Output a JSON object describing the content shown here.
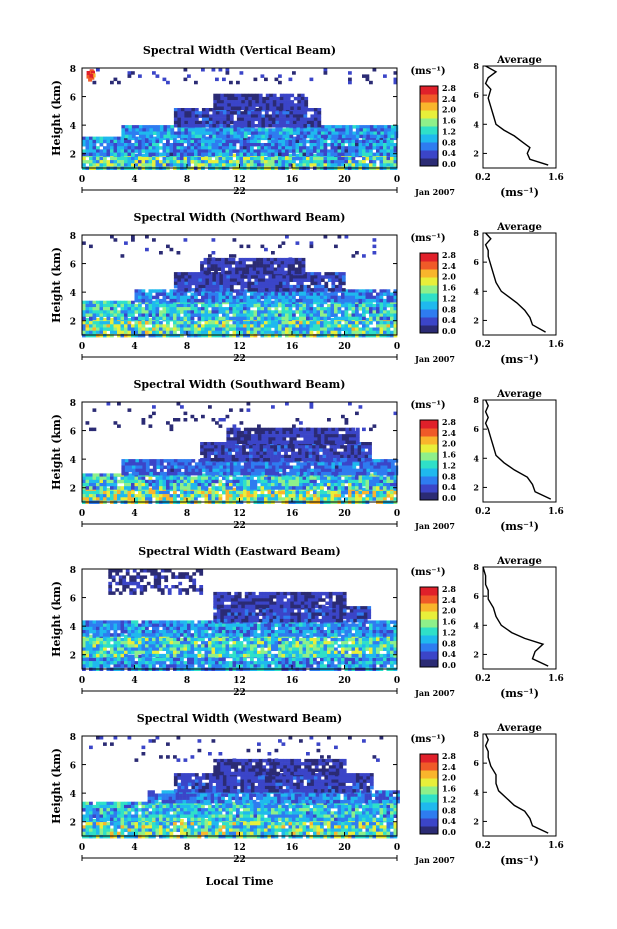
{
  "figure": {
    "date_label": "Jan 2007",
    "x_common_label": "Local Time",
    "colorbar_unit": "(ms⁻¹)",
    "colorbar_ticks": [
      "0.0",
      "0.4",
      "0.8",
      "1.2",
      "1.6",
      "2.0",
      "2.4",
      "2.8"
    ],
    "colorbar_colors": [
      "#2b2b74",
      "#3b45c8",
      "#2e7cf0",
      "#1fb9ee",
      "#2fe0c8",
      "#8ef08a",
      "#e8ef3a",
      "#f9b52c",
      "#f05a28",
      "#e0202a"
    ],
    "xtick_labels": [
      "0",
      "4",
      "8",
      "12",
      "16",
      "20",
      "0"
    ],
    "day_label": "22",
    "heatmap_ylabel": "Height (km)",
    "heatmap_ytick_labels": [
      "2",
      "4",
      "6",
      "8"
    ],
    "profile_title": "Average",
    "profile_xtick_labels": [
      "0.2",
      "1.6"
    ],
    "profile_ytick_labels": [
      "2",
      "4",
      "6",
      "8"
    ],
    "profile_xlabel": "(ms⁻¹)"
  },
  "chart_data": [
    {
      "type": "heatmap",
      "title": "Spectral Width (Vertical Beam)",
      "xlabel": "Local Time (22 Jan 2007)",
      "ylabel": "Height (km)",
      "x_range_hours": [
        0,
        24
      ],
      "y_range_km": [
        1,
        8
      ],
      "color_range": [
        0.0,
        2.8
      ],
      "color_unit": "ms-1",
      "noise_edge_ragged": 0.6,
      "layers": [
        {
          "h0": 1.0,
          "h1": 2.0,
          "t0": 0,
          "t1": 24,
          "value": 1.0,
          "spread": 0.9
        },
        {
          "h0": 2.0,
          "h1": 3.2,
          "t0": 0,
          "t1": 24,
          "value": 0.6,
          "spread": 0.6
        },
        {
          "h0": 3.2,
          "h1": 4.0,
          "t0": 3,
          "t1": 24,
          "value": 0.7,
          "spread": 0.5
        },
        {
          "h0": 4.0,
          "h1": 5.2,
          "t0": 7,
          "t1": 18,
          "value": 0.3,
          "spread": 0.3
        },
        {
          "h0": 5.2,
          "h1": 6.2,
          "t0": 10,
          "t1": 17,
          "value": 0.25,
          "spread": 0.2
        },
        {
          "h0": 7.0,
          "h1": 8.0,
          "t0": 0,
          "t1": 24,
          "value": 0.2,
          "spread": 0.2,
          "sparse": 0.88
        }
      ],
      "hotspot": {
        "t": 0.3,
        "h": 7.5,
        "value": 2.6
      },
      "profile": {
        "x_range": [
          0.2,
          1.6
        ],
        "y_range_km": [
          1,
          8
        ],
        "points": [
          [
            1.45,
            1.2
          ],
          [
            1.1,
            1.6
          ],
          [
            1.05,
            2.0
          ],
          [
            1.1,
            2.4
          ],
          [
            0.95,
            2.8
          ],
          [
            0.8,
            3.2
          ],
          [
            0.6,
            3.6
          ],
          [
            0.45,
            4.0
          ],
          [
            0.4,
            4.6
          ],
          [
            0.35,
            5.2
          ],
          [
            0.3,
            5.8
          ],
          [
            0.35,
            6.4
          ],
          [
            0.25,
            6.8
          ],
          [
            0.3,
            7.2
          ],
          [
            0.45,
            7.6
          ],
          [
            0.25,
            8.0
          ]
        ]
      }
    },
    {
      "type": "heatmap",
      "title": "Spectral Width (Northward Beam)",
      "xlabel": "Local Time (22 Jan 2007)",
      "ylabel": "Height (km)",
      "x_range_hours": [
        0,
        24
      ],
      "y_range_km": [
        1,
        8
      ],
      "color_range": [
        0.0,
        2.8
      ],
      "color_unit": "ms-1",
      "noise_edge_ragged": 0.7,
      "layers": [
        {
          "h0": 1.0,
          "h1": 2.2,
          "t0": 0,
          "t1": 24,
          "value": 1.1,
          "spread": 0.9
        },
        {
          "h0": 2.2,
          "h1": 3.4,
          "t0": 0,
          "t1": 24,
          "value": 0.9,
          "spread": 0.7
        },
        {
          "h0": 3.4,
          "h1": 4.2,
          "t0": 4,
          "t1": 24,
          "value": 0.6,
          "spread": 0.5
        },
        {
          "h0": 4.2,
          "h1": 5.4,
          "t0": 7,
          "t1": 20,
          "value": 0.3,
          "spread": 0.3
        },
        {
          "h0": 5.4,
          "h1": 6.4,
          "t0": 9,
          "t1": 17,
          "value": 0.25,
          "spread": 0.2
        },
        {
          "h0": 6.4,
          "h1": 8.0,
          "t0": 0,
          "t1": 24,
          "value": 0.2,
          "spread": 0.2,
          "sparse": 0.9
        }
      ],
      "hotspot": null,
      "profile": {
        "x_range": [
          0.2,
          1.6
        ],
        "y_range_km": [
          1,
          8
        ],
        "points": [
          [
            1.4,
            1.2
          ],
          [
            1.15,
            1.7
          ],
          [
            1.1,
            2.2
          ],
          [
            1.0,
            2.7
          ],
          [
            0.85,
            3.2
          ],
          [
            0.7,
            3.6
          ],
          [
            0.55,
            4.0
          ],
          [
            0.45,
            4.6
          ],
          [
            0.4,
            5.2
          ],
          [
            0.35,
            5.8
          ],
          [
            0.3,
            6.4
          ],
          [
            0.3,
            6.8
          ],
          [
            0.25,
            7.2
          ],
          [
            0.35,
            7.6
          ],
          [
            0.25,
            8.0
          ]
        ]
      }
    },
    {
      "type": "heatmap",
      "title": "Spectral Width (Southward Beam)",
      "xlabel": "Local Time (22 Jan 2007)",
      "ylabel": "Height (km)",
      "x_range_hours": [
        0,
        24
      ],
      "y_range_km": [
        1,
        8
      ],
      "color_range": [
        0.0,
        2.8
      ],
      "color_unit": "ms-1",
      "noise_edge_ragged": 0.7,
      "layers": [
        {
          "h0": 1.0,
          "h1": 2.0,
          "t0": 0,
          "t1": 24,
          "value": 1.2,
          "spread": 1.0
        },
        {
          "h0": 2.0,
          "h1": 3.0,
          "t0": 0,
          "t1": 24,
          "value": 0.9,
          "spread": 0.8
        },
        {
          "h0": 3.0,
          "h1": 4.0,
          "t0": 3,
          "t1": 24,
          "value": 0.5,
          "spread": 0.4
        },
        {
          "h0": 4.0,
          "h1": 5.2,
          "t0": 9,
          "t1": 22,
          "value": 0.3,
          "spread": 0.3
        },
        {
          "h0": 5.2,
          "h1": 6.2,
          "t0": 11,
          "t1": 21,
          "value": 0.25,
          "spread": 0.2
        },
        {
          "h0": 6.2,
          "h1": 8.0,
          "t0": 0,
          "t1": 24,
          "value": 0.2,
          "spread": 0.2,
          "sparse": 0.9
        }
      ],
      "hotspot": null,
      "profile": {
        "x_range": [
          0.2,
          1.6
        ],
        "y_range_km": [
          1,
          8
        ],
        "points": [
          [
            1.5,
            1.2
          ],
          [
            1.2,
            1.7
          ],
          [
            1.15,
            2.2
          ],
          [
            1.05,
            2.7
          ],
          [
            0.8,
            3.2
          ],
          [
            0.6,
            3.7
          ],
          [
            0.45,
            4.2
          ],
          [
            0.4,
            4.8
          ],
          [
            0.35,
            5.4
          ],
          [
            0.3,
            6.0
          ],
          [
            0.25,
            6.4
          ],
          [
            0.3,
            6.8
          ],
          [
            0.25,
            7.2
          ],
          [
            0.3,
            7.6
          ],
          [
            0.25,
            8.0
          ]
        ]
      }
    },
    {
      "type": "heatmap",
      "title": "Spectral Width (Eastward Beam)",
      "xlabel": "Local Time (22 Jan 2007)",
      "ylabel": "Height (km)",
      "x_range_hours": [
        0,
        24
      ],
      "y_range_km": [
        1,
        8
      ],
      "color_range": [
        0.0,
        2.8
      ],
      "color_unit": "ms-1",
      "noise_edge_ragged": 0.6,
      "layers": [
        {
          "h0": 1.0,
          "h1": 2.0,
          "t0": 0,
          "t1": 24,
          "value": 0.7,
          "spread": 0.6
        },
        {
          "h0": 2.0,
          "h1": 3.4,
          "t0": 0,
          "t1": 24,
          "value": 1.0,
          "spread": 0.8
        },
        {
          "h0": 3.4,
          "h1": 4.4,
          "t0": 0,
          "t1": 24,
          "value": 0.7,
          "spread": 0.5
        },
        {
          "h0": 4.4,
          "h1": 5.4,
          "t0": 10,
          "t1": 22,
          "value": 0.3,
          "spread": 0.3
        },
        {
          "h0": 5.4,
          "h1": 6.4,
          "t0": 10,
          "t1": 20,
          "value": 0.25,
          "spread": 0.2
        },
        {
          "h0": 6.4,
          "h1": 8.0,
          "t0": 2,
          "t1": 9,
          "value": 0.2,
          "spread": 0.15,
          "sparse": 0.45
        }
      ],
      "hotspot": null,
      "profile": {
        "x_range": [
          0.2,
          1.6
        ],
        "y_range_km": [
          1,
          8
        ],
        "points": [
          [
            1.45,
            1.2
          ],
          [
            1.15,
            1.7
          ],
          [
            1.2,
            2.2
          ],
          [
            1.35,
            2.7
          ],
          [
            1.0,
            3.1
          ],
          [
            0.75,
            3.5
          ],
          [
            0.55,
            4.0
          ],
          [
            0.45,
            4.6
          ],
          [
            0.4,
            5.2
          ],
          [
            0.3,
            5.8
          ],
          [
            0.3,
            6.4
          ],
          [
            0.25,
            6.8
          ],
          [
            0.25,
            7.4
          ],
          [
            0.2,
            8.0
          ]
        ]
      }
    },
    {
      "type": "heatmap",
      "title": "Spectral Width (Westward Beam)",
      "xlabel": "Local Time (22 Jan 2007)",
      "ylabel": "Height (km)",
      "x_range_hours": [
        0,
        24
      ],
      "y_range_km": [
        1,
        8
      ],
      "color_range": [
        0.0,
        2.8
      ],
      "color_unit": "ms-1",
      "noise_edge_ragged": 0.7,
      "layers": [
        {
          "h0": 1.0,
          "h1": 2.2,
          "t0": 0,
          "t1": 24,
          "value": 1.1,
          "spread": 0.9
        },
        {
          "h0": 2.2,
          "h1": 3.4,
          "t0": 0,
          "t1": 24,
          "value": 0.9,
          "spread": 0.7
        },
        {
          "h0": 3.4,
          "h1": 4.2,
          "t0": 5,
          "t1": 24,
          "value": 0.6,
          "spread": 0.5
        },
        {
          "h0": 4.2,
          "h1": 5.4,
          "t0": 7,
          "t1": 22,
          "value": 0.3,
          "spread": 0.3
        },
        {
          "h0": 5.4,
          "h1": 6.4,
          "t0": 10,
          "t1": 20,
          "value": 0.25,
          "spread": 0.2
        },
        {
          "h0": 6.4,
          "h1": 8.0,
          "t0": 0,
          "t1": 24,
          "value": 0.2,
          "spread": 0.2,
          "sparse": 0.92
        }
      ],
      "hotspot": null,
      "profile": {
        "x_range": [
          0.2,
          1.6
        ],
        "y_range_km": [
          1,
          8
        ],
        "points": [
          [
            1.45,
            1.2
          ],
          [
            1.15,
            1.7
          ],
          [
            1.1,
            2.2
          ],
          [
            1.0,
            2.7
          ],
          [
            0.8,
            3.1
          ],
          [
            0.65,
            3.6
          ],
          [
            0.5,
            4.1
          ],
          [
            0.45,
            4.6
          ],
          [
            0.45,
            5.2
          ],
          [
            0.35,
            5.8
          ],
          [
            0.3,
            6.4
          ],
          [
            0.3,
            6.8
          ],
          [
            0.25,
            7.2
          ],
          [
            0.3,
            7.6
          ],
          [
            0.25,
            8.0
          ]
        ]
      }
    }
  ]
}
